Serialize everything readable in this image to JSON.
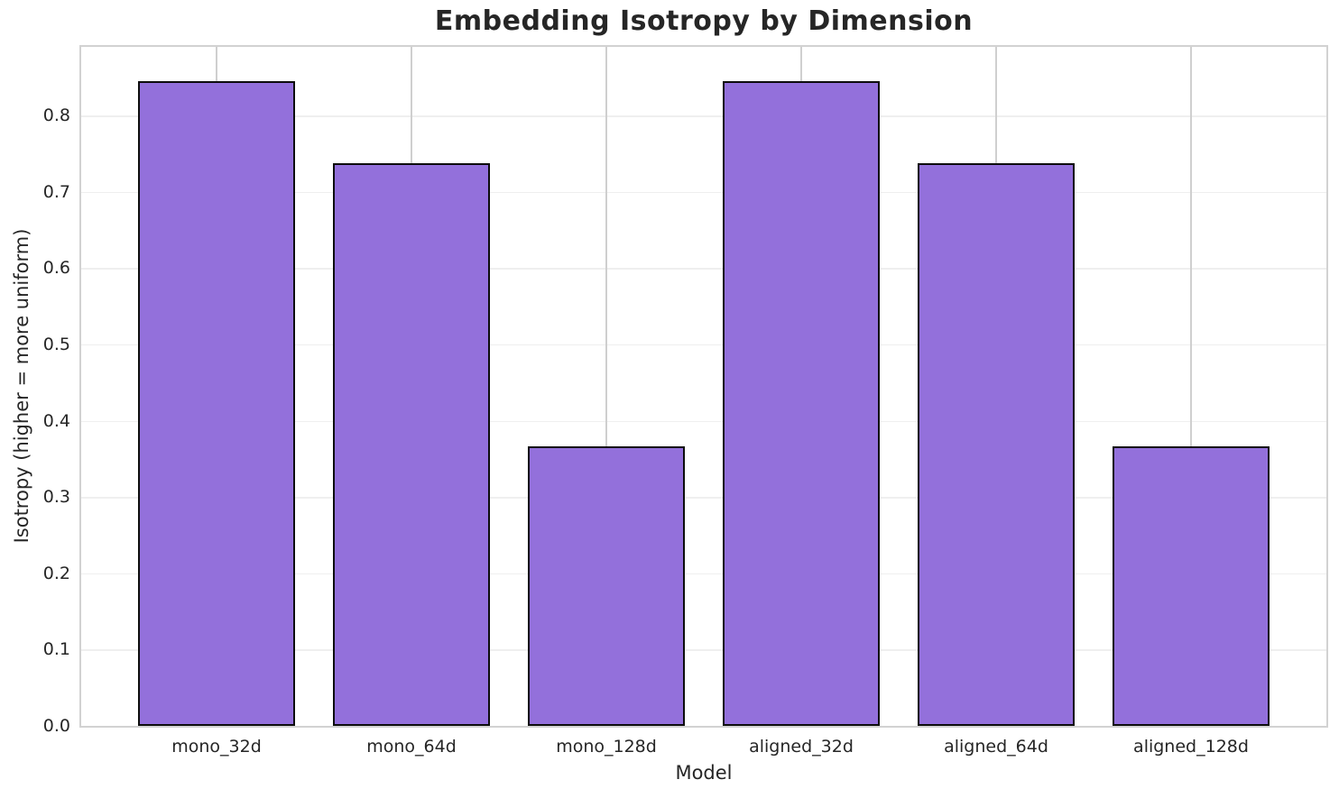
{
  "chart_data": {
    "type": "bar",
    "title": "Embedding Isotropy by Dimension",
    "xlabel": "Model",
    "ylabel": "Isotropy (higher = more uniform)",
    "categories": [
      "mono_32d",
      "mono_64d",
      "mono_128d",
      "aligned_32d",
      "aligned_64d",
      "aligned_128d"
    ],
    "values": [
      0.845,
      0.738,
      0.366,
      0.845,
      0.738,
      0.366
    ],
    "yticks": [
      0.0,
      0.1,
      0.2,
      0.3,
      0.4,
      0.5,
      0.6,
      0.7,
      0.8
    ],
    "ytick_labels": [
      "0.0",
      "0.1",
      "0.2",
      "0.3",
      "0.4",
      "0.5",
      "0.6",
      "0.7",
      "0.8"
    ],
    "ylim": [
      0,
      0.89
    ],
    "grid": "both",
    "legend": "none",
    "colors": {
      "bar_fill": "#9370DB",
      "bar_edge": "#0d0d0d",
      "grid_horizontal": "#efefef",
      "grid_vertical": "#cfcfcf",
      "spine": "#d2d2d2",
      "text": "#262626",
      "background": "#ffffff"
    }
  }
}
